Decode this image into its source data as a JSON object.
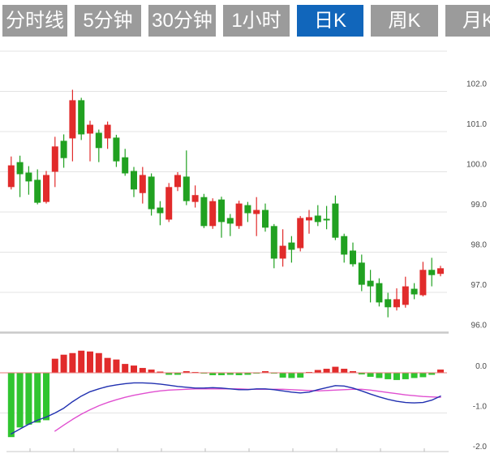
{
  "tabs": [
    {
      "label": "分时线",
      "active": false
    },
    {
      "label": "5分钟",
      "active": false
    },
    {
      "label": "30分钟",
      "active": false
    },
    {
      "label": "1小时",
      "active": false
    },
    {
      "label": "日K",
      "active": true
    },
    {
      "label": "周K",
      "active": false
    },
    {
      "label": "月K",
      "active": false
    }
  ],
  "colors": {
    "tab_bg": "#9B9B9B",
    "tab_active_bg": "#1166BB",
    "tab_text": "#FFFFFF",
    "candle_up": "#E12B2B",
    "candle_down": "#21A121",
    "macd_bar_up": "#E12B2B",
    "macd_bar_down": "#30C530",
    "dif_line": "#2030B0",
    "dea_line": "#E04FD0",
    "grid": "#E3E3E3",
    "axis": "#C9C9C9",
    "zero_line": "#E87878",
    "axis_text": "#4A4A4A",
    "background": "#FFFFFF"
  },
  "chart_data": {
    "type": "candlestick",
    "title": "",
    "legend_position": "none",
    "grid": true,
    "price_axis": {
      "side": "right",
      "ticks": [
        103,
        102,
        101,
        100,
        99,
        98,
        97,
        96
      ],
      "labels": [
        "",
        "102.0",
        "101.0",
        "100.0",
        "99.0",
        "98.0",
        "97.0",
        "96.0"
      ],
      "range": [
        96.0,
        103.0
      ]
    },
    "macd_axis": {
      "side": "right",
      "ticks": [
        0,
        -1,
        -2
      ],
      "labels": [
        "0.0",
        "-1.0",
        "-2.0"
      ],
      "range": [
        -2.0,
        0.7
      ]
    },
    "candles_ohlc_format": [
      "open",
      "high",
      "low",
      "close"
    ],
    "candles": [
      [
        99.62,
        100.38,
        99.56,
        100.16
      ],
      [
        100.24,
        100.4,
        99.37,
        99.94
      ],
      [
        99.98,
        100.14,
        99.43,
        99.76
      ],
      [
        99.8,
        100.06,
        99.19,
        99.23
      ],
      [
        99.25,
        100.02,
        99.21,
        99.92
      ],
      [
        100.0,
        100.87,
        99.62,
        100.63
      ],
      [
        100.77,
        100.93,
        100.1,
        100.34
      ],
      [
        100.83,
        102.04,
        100.26,
        101.78
      ],
      [
        101.78,
        101.84,
        100.79,
        100.93
      ],
      [
        100.95,
        101.27,
        100.26,
        101.17
      ],
      [
        100.97,
        101.05,
        100.24,
        100.59
      ],
      [
        100.83,
        101.25,
        100.57,
        101.17
      ],
      [
        100.85,
        100.92,
        100.12,
        100.26
      ],
      [
        100.36,
        100.57,
        99.9,
        99.96
      ],
      [
        100.02,
        100.12,
        99.37,
        99.56
      ],
      [
        99.47,
        100.12,
        99.21,
        99.92
      ],
      [
        99.88,
        99.96,
        98.91,
        99.07
      ],
      [
        99.11,
        99.27,
        98.67,
        98.97
      ],
      [
        98.81,
        99.72,
        98.75,
        99.62
      ],
      [
        99.62,
        99.99,
        99.52,
        99.92
      ],
      [
        99.88,
        100.53,
        99.17,
        99.27
      ],
      [
        99.25,
        99.66,
        99.11,
        99.42
      ],
      [
        99.37,
        99.45,
        98.6,
        98.65
      ],
      [
        98.65,
        99.34,
        98.58,
        99.27
      ],
      [
        99.31,
        99.38,
        98.36,
        98.75
      ],
      [
        98.85,
        98.95,
        98.4,
        98.71
      ],
      [
        98.65,
        99.28,
        98.58,
        99.21
      ],
      [
        99.17,
        99.25,
        98.75,
        98.97
      ],
      [
        98.95,
        99.37,
        98.4,
        99.05
      ],
      [
        99.05,
        99.21,
        98.51,
        98.61
      ],
      [
        98.65,
        98.7,
        97.6,
        97.84
      ],
      [
        97.84,
        98.57,
        97.64,
        98.16
      ],
      [
        98.24,
        98.4,
        97.74,
        98.06
      ],
      [
        98.1,
        98.9,
        98.02,
        98.85
      ],
      [
        98.79,
        99.05,
        98.46,
        98.87
      ],
      [
        98.91,
        99.17,
        98.65,
        98.75
      ],
      [
        98.83,
        99.15,
        98.57,
        98.79
      ],
      [
        99.21,
        99.41,
        98.3,
        98.36
      ],
      [
        98.4,
        98.46,
        97.74,
        97.94
      ],
      [
        98.04,
        98.24,
        97.64,
        97.7
      ],
      [
        97.74,
        97.94,
        97.03,
        97.19
      ],
      [
        97.29,
        97.56,
        96.75,
        97.15
      ],
      [
        97.23,
        97.35,
        96.65,
        96.75
      ],
      [
        96.83,
        96.99,
        96.38,
        96.63
      ],
      [
        96.63,
        97.1,
        96.55,
        96.83
      ],
      [
        96.69,
        97.39,
        96.62,
        97.15
      ],
      [
        97.09,
        97.23,
        96.83,
        96.95
      ],
      [
        96.93,
        97.76,
        96.9,
        97.56
      ],
      [
        97.56,
        97.86,
        97.15,
        97.43
      ],
      [
        97.46,
        97.66,
        97.4,
        97.6
      ]
    ],
    "macd": {
      "histogram": [
        -1.6,
        -1.36,
        -1.29,
        -1.24,
        -1.18,
        0.35,
        0.45,
        0.49,
        0.55,
        0.53,
        0.49,
        0.37,
        0.33,
        0.22,
        0.18,
        0.12,
        0.08,
        0.03,
        -0.05,
        -0.05,
        0.04,
        0.01,
        -0.01,
        -0.06,
        -0.06,
        -0.05,
        -0.06,
        -0.05,
        -0.01,
        0.04,
        -0.02,
        -0.12,
        -0.13,
        -0.12,
        0.01,
        0.07,
        0.1,
        0.15,
        0.1,
        0.04,
        -0.04,
        -0.1,
        -0.13,
        -0.16,
        -0.18,
        -0.16,
        -0.13,
        -0.11,
        -0.05,
        0.08
      ],
      "dif": [
        -1.52,
        -1.4,
        -1.28,
        -1.18,
        -1.1,
        -1.0,
        -0.88,
        -0.72,
        -0.58,
        -0.47,
        -0.4,
        -0.34,
        -0.3,
        -0.27,
        -0.25,
        -0.25,
        -0.26,
        -0.28,
        -0.31,
        -0.34,
        -0.36,
        -0.38,
        -0.38,
        -0.37,
        -0.38,
        -0.4,
        -0.42,
        -0.42,
        -0.4,
        -0.4,
        -0.42,
        -0.45,
        -0.48,
        -0.5,
        -0.48,
        -0.42,
        -0.37,
        -0.32,
        -0.33,
        -0.38,
        -0.45,
        -0.53,
        -0.6,
        -0.66,
        -0.71,
        -0.74,
        -0.75,
        -0.74,
        -0.68,
        -0.58
      ],
      "dea": [
        null,
        null,
        null,
        null,
        null,
        -1.45,
        -1.3,
        -1.16,
        -1.03,
        -0.92,
        -0.82,
        -0.74,
        -0.67,
        -0.61,
        -0.56,
        -0.52,
        -0.48,
        -0.45,
        -0.43,
        -0.42,
        -0.41,
        -0.4,
        -0.4,
        -0.4,
        -0.4,
        -0.4,
        -0.4,
        -0.41,
        -0.41,
        -0.41,
        -0.41,
        -0.41,
        -0.42,
        -0.43,
        -0.44,
        -0.45,
        -0.44,
        -0.43,
        -0.42,
        -0.41,
        -0.41,
        -0.43,
        -0.46,
        -0.49,
        -0.52,
        -0.55,
        -0.57,
        -0.59,
        -0.6,
        -0.61
      ]
    }
  }
}
